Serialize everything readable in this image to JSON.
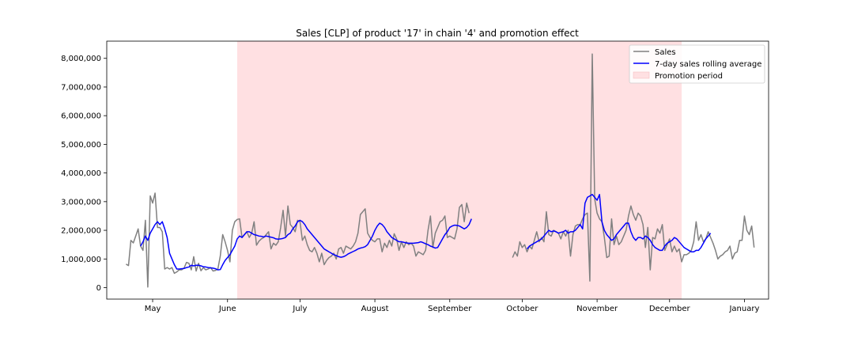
{
  "chart_data": {
    "type": "line",
    "title": "Sales [CLP] of product '17' in chain '4' and promotion effect",
    "xlabel": "",
    "ylabel": "",
    "x_axis": "date",
    "xlim": [
      "2021-04-12",
      "2022-01-11"
    ],
    "ylim": [
      -400000,
      8600000
    ],
    "grid": false,
    "legend_position": "top-right",
    "x_ticks": [
      {
        "date": "2021-05-01",
        "label": "May"
      },
      {
        "date": "2021-06-01",
        "label": "June"
      },
      {
        "date": "2021-07-01",
        "label": "July"
      },
      {
        "date": "2021-08-01",
        "label": "August"
      },
      {
        "date": "2021-09-01",
        "label": "September"
      },
      {
        "date": "2021-10-01",
        "label": "October"
      },
      {
        "date": "2021-11-01",
        "label": "November"
      },
      {
        "date": "2021-12-01",
        "label": "December"
      },
      {
        "date": "2022-01-01",
        "label": "January"
      }
    ],
    "y_ticks": [
      {
        "value": 0,
        "label": "0"
      },
      {
        "value": 1000000,
        "label": "1,000,000"
      },
      {
        "value": 2000000,
        "label": "2,000,000"
      },
      {
        "value": 3000000,
        "label": "3,000,000"
      },
      {
        "value": 4000000,
        "label": "4,000,000"
      },
      {
        "value": 5000000,
        "label": "5,000,000"
      },
      {
        "value": 6000000,
        "label": "6,000,000"
      },
      {
        "value": 7000000,
        "label": "7,000,000"
      },
      {
        "value": 8000000,
        "label": "8,000,000"
      }
    ],
    "promotion_period": {
      "name": "Promotion period",
      "start": "2021-06-05",
      "end": "2021-12-06",
      "color": "#ffe0e2"
    },
    "series": [
      {
        "name": "Sales",
        "color": "#808080",
        "segments": [
          {
            "start": "2021-04-20",
            "values": [
              820000,
              770000,
              1650000,
              1560000,
              1800000,
              2050000,
              1450000,
              1300000,
              2350000,
              20000,
              3200000,
              2950000,
              3300000,
              2100000,
              2100000,
              1950000,
              650000,
              700000,
              650000,
              700000,
              500000,
              550000,
              620000,
              620000,
              680000,
              880000,
              850000,
              620000,
              1080000,
              580000,
              850000,
              590000,
              700000,
              620000,
              650000,
              700000,
              580000,
              600000,
              650000,
              1100000,
              1850000,
              1600000,
              1300000,
              900000,
              2000000,
              2300000,
              2380000,
              2400000,
              1750000,
              1850000,
              1950000,
              1750000,
              1900000,
              2300000,
              1480000,
              1620000,
              1700000,
              1750000,
              1850000,
              1950000,
              1350000,
              1550000,
              1480000,
              1600000,
              2100000,
              2700000,
              1800000,
              2850000,
              2200000,
              2100000,
              1950000,
              2350000,
              2300000,
              1650000,
              1800000,
              1500000,
              1300000,
              1250000,
              1400000,
              1200000,
              900000,
              1200000,
              800000,
              950000,
              1050000,
              1100000,
              1200000,
              1000000,
              1350000,
              1400000,
              1200000,
              1450000,
              1400000,
              1350000,
              1450000,
              1600000,
              1900000,
              2550000,
              2650000,
              2750000,
              1900000,
              1750000,
              1650000,
              1600000,
              1700000,
              1700000,
              1250000,
              1550000,
              1400000,
              1650000,
              1450000,
              1880000,
              1700000,
              1300000,
              1600000,
              1400000,
              1600000,
              1500000,
              1550000,
              1450000,
              1100000,
              1250000,
              1200000,
              1150000,
              1300000,
              2000000,
              2500000,
              1400000,
              1900000,
              2100000,
              2300000,
              2350000,
              2500000,
              1750000,
              1800000,
              1750000,
              1700000,
              2050000,
              2800000,
              2900000,
              2300000,
              2950000,
              2600000
            ]
          },
          {
            "start": "2021-09-27",
            "values": [
              1050000,
              1250000,
              1100000,
              1600000,
              1400000,
              1500000,
              1250000,
              1450000,
              1350000,
              1650000,
              1950000,
              1600000,
              1750000,
              1600000,
              2650000,
              1850000,
              1800000,
              2000000,
              1950000,
              1900000,
              1700000,
              1950000,
              1800000,
              2000000,
              1100000,
              1850000,
              2150000,
              2200000,
              2200000,
              2400000,
              2550000,
              2600000,
              230000,
              8150000,
              3100000,
              2600000,
              2400000,
              2300000,
              1750000,
              1050000,
              1100000,
              2400000,
              1500000,
              1800000,
              1500000,
              1600000,
              1800000,
              2000000,
              2500000,
              2850000,
              2550000,
              2350000,
              2600000,
              2500000,
              2200000,
              1400000,
              2100000,
              620000,
              1750000,
              1700000,
              2050000,
              1900000,
              2200000,
              1300000,
              1500000,
              1700000,
              1250000,
              1450000,
              1250000,
              1350000,
              900000,
              1150000,
              1150000,
              1200000,
              1300000,
              1600000,
              2300000,
              1650000,
              1850000,
              1600000,
              1700000,
              1950000,
              1750000,
              1550000,
              1300000,
              1000000,
              1100000,
              1150000,
              1250000,
              1300000,
              1450000,
              1000000,
              1200000,
              1250000,
              1650000,
              1650000,
              2500000,
              2000000,
              1850000,
              2150000,
              1400000
            ]
          }
        ]
      },
      {
        "name": "7-day sales rolling average",
        "color": "#0000ff",
        "segments": [
          {
            "start": "2021-04-26",
            "values": [
              1450000,
              1600000,
              1800000,
              1650000,
              1900000,
              2050000,
              2200000,
              2300000,
              2200000,
              2300000,
              2050000,
              1750000,
              1200000,
              1000000,
              800000,
              650000,
              650000,
              660000,
              670000,
              700000,
              720000,
              780000,
              760000,
              780000,
              780000,
              760000,
              730000,
              720000,
              700000,
              690000,
              680000,
              660000,
              620000,
              630000,
              800000,
              950000,
              1050000,
              1150000,
              1300000,
              1450000,
              1700000,
              1800000,
              1750000,
              1850000,
              1950000,
              1950000,
              1900000,
              1850000,
              1830000,
              1800000,
              1790000,
              1770000,
              1800000,
              1780000,
              1760000,
              1740000,
              1700000,
              1690000,
              1700000,
              1720000,
              1750000,
              1850000,
              1900000,
              2050000,
              2150000,
              2300000,
              2350000,
              2300000,
              2200000,
              2050000,
              1950000,
              1850000,
              1750000,
              1650000,
              1550000,
              1450000,
              1350000,
              1300000,
              1250000,
              1200000,
              1150000,
              1120000,
              1080000,
              1060000,
              1080000,
              1120000,
              1180000,
              1220000,
              1260000,
              1300000,
              1350000,
              1380000,
              1400000,
              1430000,
              1500000,
              1650000,
              1800000,
              2000000,
              2150000,
              2250000,
              2200000,
              2100000,
              1950000,
              1850000,
              1750000,
              1700000,
              1650000,
              1600000,
              1600000,
              1580000,
              1560000,
              1550000,
              1550000,
              1550000,
              1560000,
              1570000,
              1600000,
              1570000,
              1530000,
              1500000,
              1450000,
              1420000,
              1380000,
              1400000,
              1550000,
              1700000,
              1850000,
              1950000,
              2100000,
              2150000,
              2180000,
              2170000,
              2150000,
              2100000,
              2050000,
              2100000,
              2200000,
              2400000
            ]
          },
          {
            "start": "2021-10-03",
            "values": [
              1350000,
              1450000,
              1500000,
              1550000,
              1600000,
              1650000,
              1700000,
              1800000,
              1900000,
              2000000,
              1950000,
              1980000,
              1950000,
              1900000,
              1930000,
              1950000,
              2000000,
              1900000,
              1950000,
              1950000,
              2000000,
              2100000,
              2200000,
              2050000,
              2950000,
              3150000,
              3200000,
              3250000,
              3150000,
              3050000,
              3250000,
              2300000,
              2000000,
              1850000,
              1750000,
              1650000,
              1700000,
              1850000,
              1950000,
              2050000,
              2150000,
              2250000,
              2250000,
              1950000,
              1750000,
              1650000,
              1750000,
              1750000,
              1700000,
              1800000,
              1750000,
              1650000,
              1500000,
              1400000,
              1350000,
              1300000,
              1300000,
              1450000,
              1550000,
              1600000,
              1650000,
              1750000,
              1700000,
              1600000,
              1500000,
              1400000,
              1350000,
              1300000,
              1250000,
              1250000,
              1300000,
              1300000,
              1400000,
              1550000,
              1700000,
              1800000,
              1900000
            ]
          }
        ]
      }
    ]
  }
}
